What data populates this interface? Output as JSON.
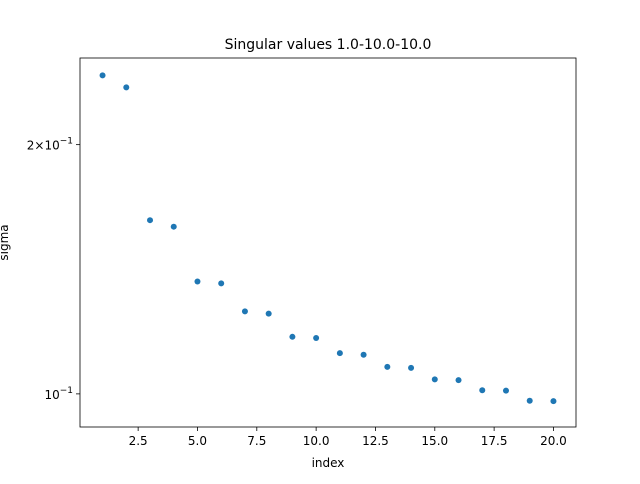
{
  "chart_data": {
    "type": "scatter",
    "title": "Singular values 1.0-10.0-10.0",
    "xlabel": "index",
    "ylabel": "sigma",
    "yscale": "log",
    "xlim": [
      0.05,
      20.95
    ],
    "ylim": [
      0.0912,
      0.2545
    ],
    "grid": false,
    "marker_color": "#1f77b4",
    "x_ticks": [
      {
        "value": 2.5,
        "label": "2.5"
      },
      {
        "value": 5.0,
        "label": "5.0"
      },
      {
        "value": 7.5,
        "label": "7.5"
      },
      {
        "value": 10.0,
        "label": "10.0"
      },
      {
        "value": 12.5,
        "label": "12.5"
      },
      {
        "value": 15.0,
        "label": "15.0"
      },
      {
        "value": 17.5,
        "label": "17.5"
      },
      {
        "value": 20.0,
        "label": "20.0"
      }
    ],
    "y_ticks": [
      {
        "value": 0.1,
        "base": "10",
        "exp": "−1",
        "mantissa": ""
      },
      {
        "value": 0.2,
        "base": "10",
        "exp": "−1",
        "mantissa": "2×"
      }
    ],
    "y_minor_ticks": [
      0.09,
      0.3
    ],
    "series": [
      {
        "x": [
          1,
          2,
          3,
          4,
          5,
          6,
          7,
          8,
          9,
          10,
          11,
          12,
          13,
          14,
          15,
          16,
          17,
          18,
          19,
          20
        ],
        "y": [
          0.2425,
          0.2345,
          0.1621,
          0.1592,
          0.1367,
          0.136,
          0.1258,
          0.125,
          0.1172,
          0.1168,
          0.112,
          0.1115,
          0.1078,
          0.1075,
          0.1041,
          0.1039,
          0.101,
          0.1009,
          0.0981,
          0.098
        ]
      }
    ]
  }
}
